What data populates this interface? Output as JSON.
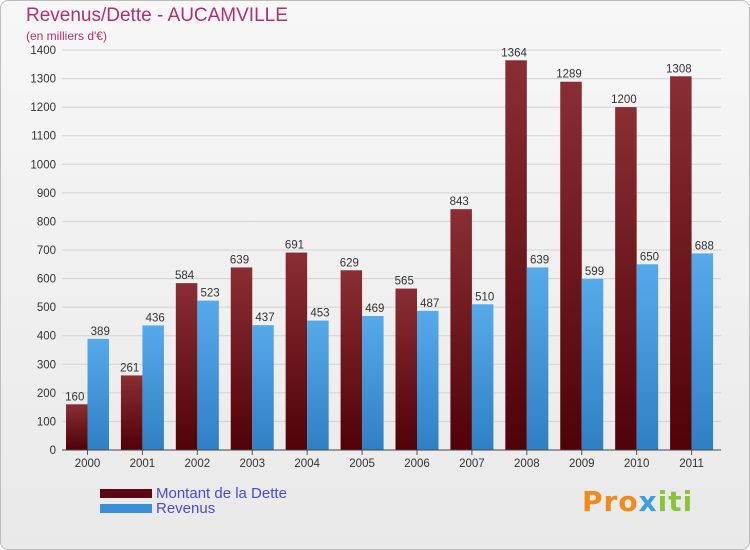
{
  "chart_data": {
    "type": "bar",
    "title": "Revenus/Dette - AUCAMVILLE",
    "subtitle": "(en milliers d'€)",
    "categories": [
      "2000",
      "2001",
      "2002",
      "2003",
      "2004",
      "2005",
      "2006",
      "2007",
      "2008",
      "2009",
      "2010",
      "2011"
    ],
    "series": [
      {
        "name": "Montant de la Dette",
        "color": "#7a1f26",
        "values": [
          160,
          261,
          584,
          639,
          691,
          629,
          565,
          843,
          1364,
          1289,
          1200,
          1308
        ]
      },
      {
        "name": "Revenus",
        "color": "#4a9fe0",
        "values": [
          389,
          436,
          523,
          437,
          453,
          469,
          487,
          510,
          639,
          599,
          650,
          688
        ]
      }
    ],
    "ylim": [
      0,
      1400
    ],
    "yticks": [
      0,
      100,
      200,
      300,
      400,
      500,
      600,
      700,
      800,
      900,
      1000,
      1100,
      1200,
      1300,
      1400
    ],
    "grid": true,
    "legend": "bottom-left"
  },
  "logo": {
    "text": "Proxiti",
    "part1": "Pro",
    "part2": "x",
    "part3": "iti"
  }
}
